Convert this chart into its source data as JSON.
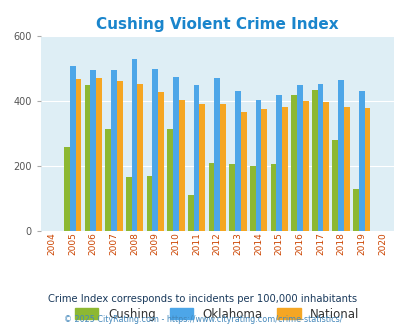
{
  "title": "Cushing Violent Crime Index",
  "years": [
    2004,
    2005,
    2006,
    2007,
    2008,
    2009,
    2010,
    2011,
    2012,
    2013,
    2014,
    2015,
    2016,
    2017,
    2018,
    2019,
    2020
  ],
  "cushing": [
    null,
    260,
    450,
    315,
    165,
    170,
    315,
    110,
    210,
    205,
    200,
    205,
    420,
    435,
    280,
    130,
    null
  ],
  "oklahoma": [
    null,
    510,
    495,
    495,
    530,
    500,
    475,
    450,
    470,
    430,
    405,
    418,
    450,
    452,
    465,
    430,
    null
  ],
  "national": [
    null,
    468,
    470,
    462,
    452,
    428,
    403,
    390,
    390,
    368,
    375,
    383,
    400,
    397,
    383,
    378,
    null
  ],
  "cushing_color": "#8db832",
  "oklahoma_color": "#4da6e8",
  "national_color": "#f5a623",
  "bg_color": "#deeef5",
  "ylim": [
    0,
    600
  ],
  "yticks": [
    0,
    200,
    400,
    600
  ],
  "subtitle": "Crime Index corresponds to incidents per 100,000 inhabitants",
  "footer": "© 2025 CityRating.com - https://www.cityrating.com/crime-statistics/",
  "title_color": "#1a85cc",
  "subtitle_color": "#1a3a5c",
  "footer_color": "#4488bb"
}
